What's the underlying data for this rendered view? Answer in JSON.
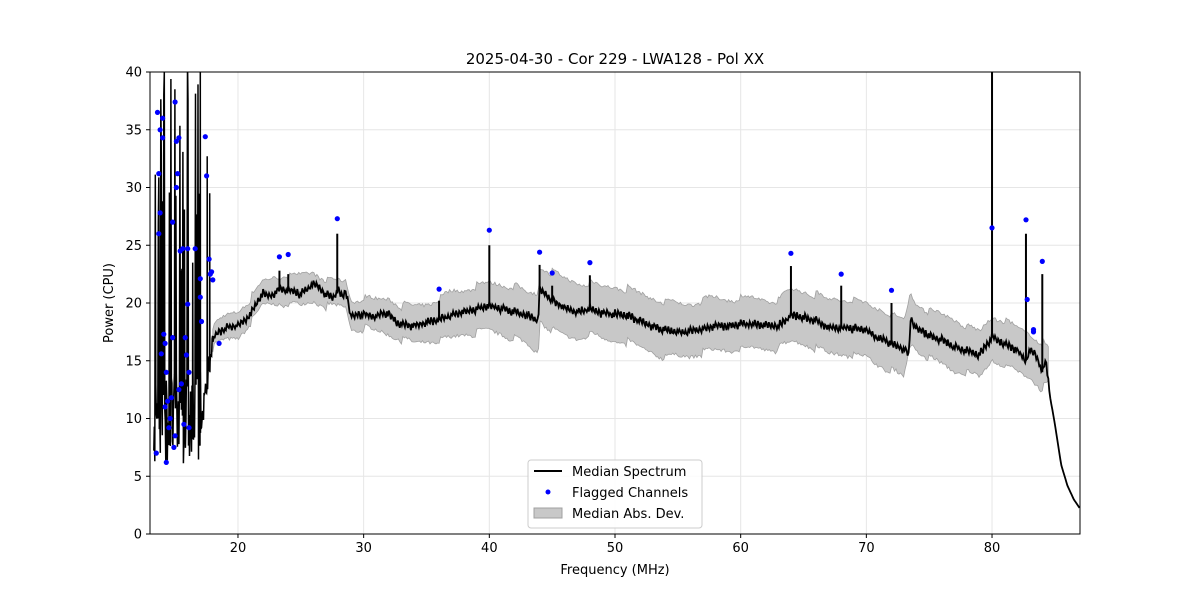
{
  "chart_data": {
    "type": "line",
    "title": "2025-04-30 - Cor 229 - LWA128 - Pol XX",
    "xlabel": "Frequency (MHz)",
    "ylabel": "Power (CPU)",
    "xlim": [
      13.0,
      87.0
    ],
    "ylim": [
      0,
      40
    ],
    "xticks": [
      20,
      30,
      40,
      50,
      60,
      70,
      80
    ],
    "yticks": [
      0,
      5,
      10,
      15,
      20,
      25,
      30,
      35,
      40
    ],
    "xtick_labels": [
      "20",
      "30",
      "40",
      "50",
      "60",
      "70",
      "80"
    ],
    "ytick_labels": [
      "0",
      "5",
      "10",
      "15",
      "20",
      "25",
      "30",
      "35",
      "40"
    ],
    "grid": true,
    "legend": {
      "position": "bottom-center",
      "entries": [
        "Median Spectrum",
        "Flagged Channels",
        "Median Abs. Dev."
      ]
    },
    "colors": {
      "median": "#000000",
      "flagged": "#0000ff",
      "mad_fill": "#c8c8c8",
      "mad_edge": "#a0a0a0",
      "grid": "#e6e6e6"
    },
    "series": [
      {
        "name": "Median Spectrum",
        "x": [
          18.0,
          18.5,
          19.0,
          19.5,
          20.0,
          20.5,
          21.0,
          21.5,
          22.0,
          22.5,
          23.0,
          23.5,
          24.0,
          24.5,
          25.0,
          25.5,
          26.0,
          26.5,
          27.0,
          27.5,
          28.0,
          28.3,
          28.6,
          29.0,
          29.5,
          30.0,
          30.5,
          31.0,
          31.5,
          32.0,
          32.5,
          33.0,
          34.0,
          35.0,
          36.0,
          37.0,
          38.0,
          39.0,
          40.0,
          41.0,
          42.0,
          43.0,
          43.9,
          44.0,
          45.0,
          46.0,
          47.0,
          48.0,
          49.0,
          50.0,
          51.0,
          52.0,
          53.0,
          54.0,
          55.0,
          56.0,
          57.0,
          58.0,
          59.0,
          60.0,
          61.0,
          62.0,
          63.0,
          64.0,
          65.0,
          66.0,
          67.0,
          68.0,
          69.0,
          70.0,
          71.0,
          72.0,
          73.0,
          73.4,
          73.5,
          74.0,
          75.0,
          76.0,
          77.0,
          78.0,
          79.0,
          80.0,
          81.0,
          82.0,
          82.7,
          83.0,
          83.5,
          84.0,
          84.3,
          84.6,
          85.0,
          85.5,
          86.0,
          86.5,
          87.0
        ],
        "y": [
          17.0,
          17.5,
          17.8,
          18.0,
          18.0,
          18.5,
          19.0,
          20.0,
          20.8,
          20.5,
          21.0,
          21.2,
          21.0,
          21.0,
          20.8,
          21.2,
          21.7,
          21.3,
          20.8,
          20.5,
          21.0,
          20.6,
          21.0,
          18.8,
          19.0,
          19.0,
          18.8,
          18.8,
          19.2,
          19.0,
          18.4,
          18.2,
          18.0,
          18.3,
          18.5,
          19.0,
          19.2,
          19.5,
          19.7,
          19.5,
          19.2,
          18.9,
          18.5,
          21.2,
          20.2,
          19.5,
          19.2,
          19.5,
          19.1,
          19.0,
          18.9,
          18.4,
          18.0,
          17.6,
          17.5,
          17.5,
          17.8,
          18.0,
          18.0,
          18.1,
          18.2,
          18.0,
          18.0,
          18.9,
          18.8,
          18.4,
          17.9,
          17.8,
          17.8,
          17.6,
          17.0,
          16.5,
          16.0,
          15.5,
          18.6,
          17.8,
          17.2,
          16.8,
          16.2,
          15.8,
          15.5,
          17.0,
          16.5,
          15.8,
          15.0,
          16.0,
          15.5,
          14.0,
          15.0,
          12.0,
          9.5,
          6.0,
          4.2,
          3.0,
          2.2
        ]
      },
      {
        "name": "Median Spectrum spikes",
        "spikes": [
          [
            23.3,
            22.8
          ],
          [
            24.0,
            22.5
          ],
          [
            27.9,
            26.0
          ],
          [
            36.0,
            20.2
          ],
          [
            40.0,
            25.0
          ],
          [
            44.0,
            23.3
          ],
          [
            45.0,
            21.5
          ],
          [
            48.0,
            22.4
          ],
          [
            64.0,
            23.2
          ],
          [
            68.0,
            21.5
          ],
          [
            72.0,
            20.0
          ],
          [
            80.0,
            40.0
          ],
          [
            82.7,
            26.0
          ],
          [
            84.0,
            22.5
          ]
        ]
      },
      {
        "name": "Flagged Channels",
        "points": [
          [
            13.5,
            7.0
          ],
          [
            13.6,
            36.5
          ],
          [
            13.7,
            31.2
          ],
          [
            13.7,
            26.0
          ],
          [
            13.8,
            27.8
          ],
          [
            13.8,
            35.0
          ],
          [
            13.9,
            15.6
          ],
          [
            14.0,
            36.0
          ],
          [
            14.0,
            34.3
          ],
          [
            14.1,
            17.3
          ],
          [
            14.2,
            11.0
          ],
          [
            14.2,
            16.5
          ],
          [
            14.3,
            14.0
          ],
          [
            14.3,
            6.2
          ],
          [
            14.4,
            11.5
          ],
          [
            14.5,
            9.2
          ],
          [
            14.6,
            10.0
          ],
          [
            14.7,
            11.8
          ],
          [
            14.8,
            17.0
          ],
          [
            14.8,
            27.0
          ],
          [
            14.9,
            7.5
          ],
          [
            15.0,
            37.4
          ],
          [
            15.0,
            8.5
          ],
          [
            15.1,
            34.0
          ],
          [
            15.1,
            30.0
          ],
          [
            15.2,
            31.2
          ],
          [
            15.3,
            34.3
          ],
          [
            15.3,
            12.5
          ],
          [
            15.4,
            24.5
          ],
          [
            15.5,
            13.0
          ],
          [
            15.6,
            24.7
          ],
          [
            15.7,
            9.5
          ],
          [
            15.8,
            17.0
          ],
          [
            15.9,
            15.5
          ],
          [
            16.0,
            24.7
          ],
          [
            16.0,
            19.9
          ],
          [
            16.1,
            14.0
          ],
          [
            16.1,
            9.2
          ],
          [
            16.6,
            24.7
          ],
          [
            17.0,
            22.1
          ],
          [
            17.0,
            20.5
          ],
          [
            17.1,
            18.4
          ],
          [
            17.4,
            34.4
          ],
          [
            17.5,
            31.0
          ],
          [
            17.7,
            23.8
          ],
          [
            17.8,
            22.5
          ],
          [
            17.9,
            22.7
          ],
          [
            18.0,
            22.0
          ],
          [
            18.5,
            16.5
          ],
          [
            23.3,
            24.0
          ],
          [
            24.0,
            24.2
          ],
          [
            27.9,
            27.3
          ],
          [
            36.0,
            21.2
          ],
          [
            40.0,
            26.3
          ],
          [
            44.0,
            24.4
          ],
          [
            45.0,
            22.6
          ],
          [
            48.0,
            23.5
          ],
          [
            64.0,
            24.3
          ],
          [
            68.0,
            22.5
          ],
          [
            72.0,
            21.1
          ],
          [
            80.0,
            26.5
          ],
          [
            82.7,
            27.2
          ],
          [
            82.8,
            20.3
          ],
          [
            83.3,
            17.7
          ],
          [
            83.3,
            17.5
          ],
          [
            84.0,
            23.6
          ]
        ]
      },
      {
        "name": "Median Abs. Dev.",
        "x": [
          18.0,
          19.0,
          20.0,
          21.0,
          22.0,
          23.0,
          24.0,
          25.0,
          26.0,
          27.0,
          28.0,
          28.6,
          29.0,
          30.0,
          31.0,
          32.0,
          33.0,
          34.0,
          35.0,
          36.0,
          37.0,
          38.0,
          39.0,
          40.0,
          41.0,
          42.0,
          43.0,
          43.9,
          44.0,
          45.0,
          46.0,
          47.0,
          48.0,
          49.0,
          50.0,
          51.0,
          52.0,
          53.0,
          54.0,
          55.0,
          56.0,
          57.0,
          58.0,
          59.0,
          60.0,
          61.0,
          62.0,
          63.0,
          64.0,
          65.0,
          66.0,
          67.0,
          68.0,
          69.0,
          70.0,
          71.0,
          72.0,
          73.0,
          73.5,
          74.0,
          75.0,
          76.0,
          77.0,
          78.0,
          79.0,
          80.0,
          81.0,
          82.0,
          83.0,
          84.0,
          84.6
        ],
        "lower": [
          16.2,
          16.8,
          17.0,
          18.3,
          19.8,
          20.0,
          19.9,
          19.8,
          20.2,
          19.7,
          19.7,
          19.6,
          17.7,
          17.8,
          17.6,
          17.3,
          16.9,
          16.5,
          16.7,
          16.7,
          17.0,
          17.3,
          17.4,
          17.6,
          17.3,
          16.9,
          16.4,
          15.6,
          18.5,
          17.6,
          17.1,
          16.9,
          17.3,
          16.9,
          16.7,
          16.6,
          16.1,
          15.7,
          15.3,
          15.4,
          15.4,
          15.7,
          15.9,
          15.9,
          16.0,
          16.1,
          16.0,
          16.0,
          16.7,
          16.5,
          16.1,
          15.6,
          15.6,
          15.5,
          15.3,
          14.6,
          14.1,
          13.6,
          16.5,
          15.9,
          15.2,
          14.7,
          14.1,
          13.9,
          13.6,
          15.1,
          14.6,
          14.0,
          13.6,
          12.6,
          13.0
        ],
        "upper": [
          17.9,
          18.9,
          19.3,
          20.4,
          21.9,
          22.3,
          22.4,
          22.4,
          22.7,
          22.0,
          21.9,
          21.9,
          20.2,
          20.4,
          20.3,
          20.4,
          19.8,
          19.7,
          19.9,
          20.4,
          21.0,
          21.1,
          21.5,
          21.7,
          21.6,
          21.4,
          20.9,
          20.8,
          23.2,
          22.6,
          22.1,
          21.7,
          21.7,
          21.4,
          21.4,
          21.2,
          20.8,
          20.4,
          20.1,
          19.9,
          19.9,
          20.3,
          20.4,
          20.3,
          20.4,
          20.4,
          20.2,
          20.2,
          21.2,
          21.0,
          20.7,
          20.3,
          20.3,
          20.2,
          19.9,
          19.5,
          19.0,
          18.4,
          20.9,
          19.9,
          19.3,
          19.0,
          18.6,
          17.9,
          17.5,
          18.8,
          18.5,
          17.8,
          17.4,
          16.5,
          16.0
        ]
      }
    ]
  }
}
